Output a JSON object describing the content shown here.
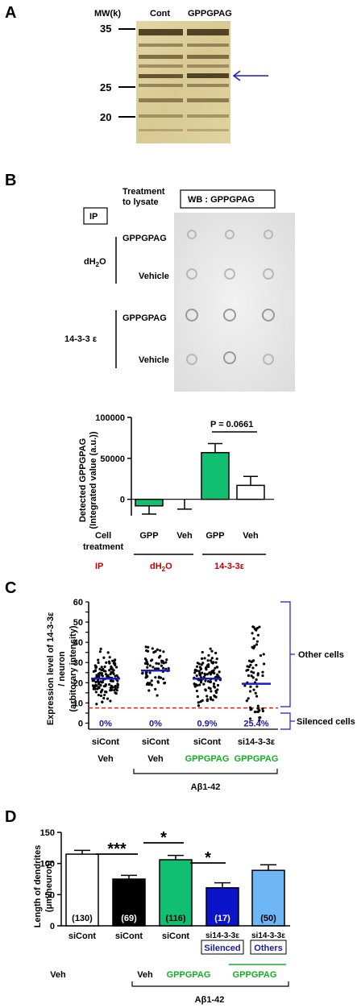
{
  "panelA": {
    "letter": "A",
    "mw_label": "MW(k)",
    "lanes": [
      "Cont",
      "GPPGPAG"
    ],
    "markers": [
      "35",
      "25",
      "20"
    ]
  },
  "panelB": {
    "letter": "B",
    "treatment_line1": "Treatment",
    "treatment_line2": "to lysate",
    "ip_box": "IP",
    "wb_box": "WB : GPPGPAG",
    "dh2o": "dH",
    "dh2o_sub": "2",
    "dh2o_tail": "O",
    "ip1414": "14-3-3 ε",
    "row_labels": [
      "GPPGPAG",
      "Vehicle",
      "GPPGPAG",
      "Vehicle"
    ],
    "p_value": "P = 0.0661",
    "cell_treatment_1": "Cell",
    "cell_treatment_2": "treatment",
    "ip_bottom": "IP",
    "dh2o_bottom": "dH",
    "dh2o_bottom_sub": "2",
    "dh2o_bottom_tail": "O",
    "ip1433_bottom": "14-3-3ε"
  },
  "panelC": {
    "letter": "C",
    "right_other": "Other cells",
    "right_silenced": "Silenced cells",
    "bottom_row1": [
      "siCont",
      "siCont",
      "siCont",
      "si14-3-3ε"
    ],
    "bottom_row2": [
      "Veh",
      "Veh",
      "GPPGPAG",
      "GPPGPAG"
    ],
    "abeta": "Aβ1-42"
  },
  "panelD": {
    "letter": "D",
    "stars": [
      "***",
      "*",
      "*"
    ],
    "bottom_row1": [
      "siCont",
      "siCont",
      "siCont",
      "si14-3-3ε",
      "si14-3-3ε"
    ],
    "box_labels": [
      "Silenced",
      "Others"
    ],
    "bottom_row3": [
      "Veh",
      "Veh",
      "GPPGPAG",
      "GPPGPAG"
    ],
    "abeta": "Aβ1-42"
  },
  "chart_data": [
    {
      "type": "bar",
      "ylabel": "Detected GPPGPAG (Integrated value (a.u.))",
      "ylim": [
        -20000,
        100000
      ],
      "yticks": [
        0,
        50000,
        100000
      ],
      "categories": [
        "GPP",
        "Veh",
        "GPP",
        "Veh"
      ],
      "values": [
        -8000,
        0,
        57000,
        17000
      ],
      "errors": [
        10000,
        12000,
        11000,
        11000
      ],
      "colors": [
        "#10c070",
        "#ffffff",
        "#10c070",
        "#ffffff"
      ]
    },
    {
      "type": "scatter",
      "ylabel": "Expression level of 14-3-3ε / neuron (arbitorary intensity)",
      "ylim": [
        -3,
        60
      ],
      "yticks": [
        0,
        5,
        10,
        15,
        20,
        25,
        30,
        35,
        40,
        45,
        50,
        55,
        60
      ],
      "threshold": 7.5,
      "groups": [
        {
          "mean": 22,
          "percent": "0%"
        },
        {
          "mean": 26,
          "percent": "0%"
        },
        {
          "mean": 22,
          "percent": "0.9%"
        },
        {
          "mean": 19.5,
          "percent": "25.4%"
        }
      ]
    },
    {
      "type": "bar",
      "ylabel": "Length of dendrites (μm/neuron)",
      "ylim": [
        0,
        150
      ],
      "yticks": [
        0,
        50,
        100,
        150
      ],
      "values": [
        115,
        75,
        106,
        61,
        89
      ],
      "errors": [
        6,
        6,
        7,
        8,
        9
      ],
      "n_labels": [
        "(130)",
        "(69)",
        "(116)",
        "(17)",
        "(50)"
      ],
      "colors": [
        "#ffffff",
        "#000000",
        "#10c070",
        "#0a14c8",
        "#6fb6f4"
      ]
    }
  ]
}
